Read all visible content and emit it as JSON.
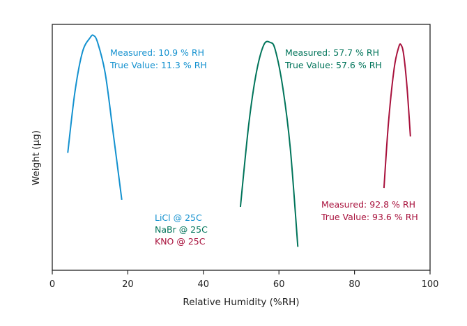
{
  "chart_data": {
    "type": "line",
    "title": "",
    "xlabel": "Relative Humidity (%RH)",
    "ylabel": "Weight (µg)",
    "xlim": [
      0,
      100
    ],
    "ylim": [
      0,
      1
    ],
    "y_units_note": "relative weight (no y tick labels shown)",
    "x_ticks": [
      0,
      20,
      40,
      60,
      80,
      100
    ],
    "x_tick_labels": [
      "0",
      "20",
      "40",
      "60",
      "80",
      "100"
    ],
    "grid": false,
    "series": [
      {
        "name": "LiCl @ 25C",
        "color": "#1391cf",
        "x": [
          4.1,
          6.0,
          8.0,
          10.0,
          10.9,
          12.0,
          14.0,
          16.0,
          18.4
        ],
        "y": [
          0.5,
          0.76,
          0.93,
          0.99,
          1.0,
          0.97,
          0.84,
          0.6,
          0.3
        ],
        "annotation": [
          "Measured: 10.9 % RH",
          "True Value: 11.3 % RH"
        ]
      },
      {
        "name": "NaBr @ 25C",
        "color": "#00745a",
        "x": [
          49.8,
          52.0,
          54.0,
          56.0,
          57.7,
          59.0,
          61.0,
          63.0,
          65.0
        ],
        "y": [
          0.27,
          0.62,
          0.84,
          0.96,
          0.97,
          0.94,
          0.78,
          0.52,
          0.1
        ],
        "annotation": [
          "Measured: 57.7 % RH",
          "True Value: 57.6 % RH"
        ]
      },
      {
        "name": "KNO @ 25C",
        "color": "#a8113c",
        "x": [
          87.8,
          89.0,
          90.5,
          91.7,
          92.3,
          93.0,
          93.9,
          94.8
        ],
        "y": [
          0.35,
          0.63,
          0.86,
          0.95,
          0.96,
          0.92,
          0.78,
          0.57
        ],
        "annotation": [
          "Measured: 92.8 % RH",
          "True Value: 93.6 % RH"
        ]
      }
    ],
    "legend": {
      "placement": "lower-middle",
      "entries": [
        "LiCl @ 25C",
        "NaBr @ 25C",
        "KNO @ 25C"
      ]
    }
  }
}
